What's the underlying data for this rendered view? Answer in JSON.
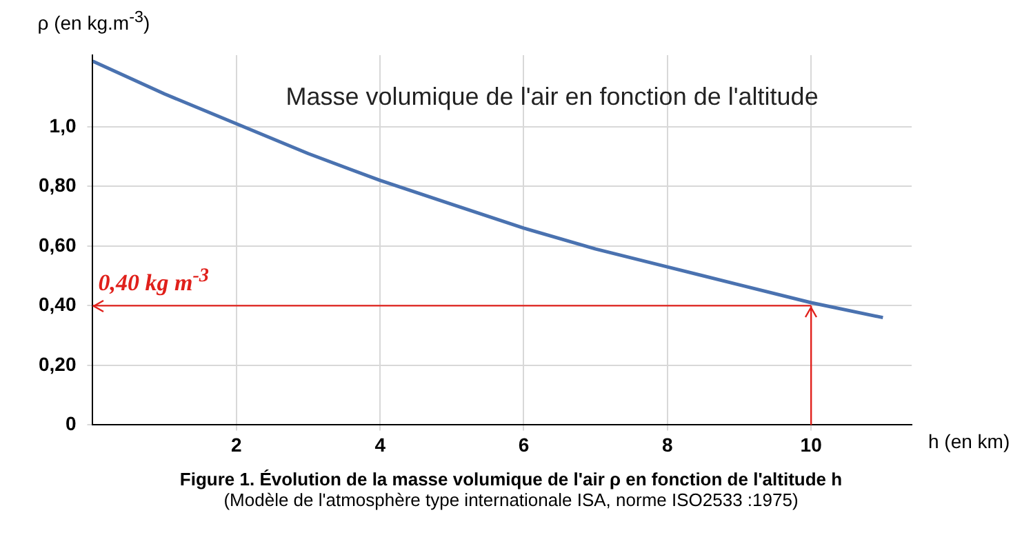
{
  "chart_data": {
    "type": "line",
    "title": "Masse volumique de l'air en fonction de l'altitude",
    "ylabel": "ρ (en kg.m$^{-3}$)",
    "xlabel": "h (en km)",
    "annotations": [
      "Figure 1. Évolution de la masse volumique de l'air ρ en fonction de l'altitude h",
      "(Modèle de l'atmosphère type internationale ISA, norme ISO2533 :1975)"
    ],
    "x": [
      0,
      1,
      2,
      3,
      4,
      5,
      6,
      7,
      8,
      9,
      10,
      11
    ],
    "series": [
      {
        "color": "#4a72b0",
        "values": [
          1.22,
          1.11,
          1.01,
          0.91,
          0.82,
          0.74,
          0.66,
          0.59,
          0.53,
          0.47,
          0.41,
          0.36
        ]
      }
    ],
    "xlim": [
      0,
      11.4
    ],
    "xticks": [
      2,
      4,
      6,
      8,
      10
    ],
    "ylim": [
      0,
      1.24
    ],
    "yticks": [
      0,
      {
        "value": 0.2,
        "label": "0,20"
      },
      {
        "value": 0.4,
        "label": "0,40"
      },
      {
        "value": 0.6,
        "label": "0,60"
      },
      {
        "value": 0.8,
        "label": "0,80"
      },
      {
        "value": 1.0,
        "label": "1,0"
      }
    ],
    "ref_lines": [
      {
        "axis": "y",
        "value": 0.4,
        "label": "0,40 kg m$^{-3}$",
        "color": "#e0201b"
      },
      {
        "axis": "x",
        "value": 10,
        "color": "#e0201b"
      }
    ],
    "grid": true,
    "legend": false,
    "marker": "none",
    "line_style": "solid"
  }
}
